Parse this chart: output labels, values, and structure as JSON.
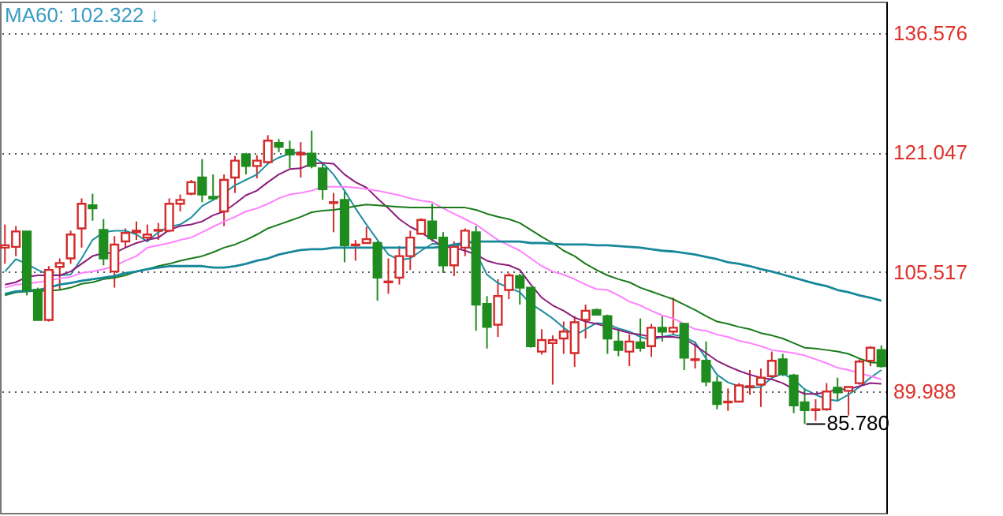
{
  "chart_data": {
    "type": "candlestick",
    "title": "MA60: 102.322 ↓",
    "categories": [
      null,
      null,
      null,
      null,
      null,
      null,
      null,
      null,
      null,
      null,
      null,
      null,
      null,
      null,
      null,
      null,
      null,
      null,
      null,
      null,
      null,
      null,
      null,
      null,
      null,
      null,
      null,
      null,
      null,
      null,
      null,
      null,
      null,
      null,
      null,
      null,
      null,
      null,
      null,
      null,
      null,
      null,
      null,
      null,
      null,
      null,
      null,
      null,
      null,
      null,
      null,
      null,
      null,
      null,
      null,
      null,
      null,
      null,
      null,
      null,
      null,
      null,
      null,
      null,
      null,
      null,
      null,
      null,
      null,
      null,
      null,
      null,
      null,
      null,
      null,
      null,
      null,
      null,
      null,
      null,
      null
    ],
    "ohlc": [
      [
        108.7,
        111.7,
        106.6,
        109.0
      ],
      [
        108.8,
        111.5,
        107.6,
        110.8
      ],
      [
        110.8,
        110.8,
        102.5,
        103.2
      ],
      [
        103.2,
        103.5,
        99.3,
        99.3
      ],
      [
        99.3,
        106.3,
        99.1,
        105.8
      ],
      [
        106.2,
        107.3,
        103.2,
        106.7
      ],
      [
        107.3,
        110.9,
        106.6,
        110.4
      ],
      [
        111.2,
        115.1,
        108.7,
        114.4
      ],
      [
        114.2,
        115.7,
        112.2,
        113.8
      ],
      [
        111.0,
        112.4,
        106.4,
        107.3
      ],
      [
        105.6,
        110.2,
        103.5,
        109.1
      ],
      [
        109.5,
        111.2,
        108.7,
        110.6
      ],
      [
        110.7,
        112.1,
        109.7,
        110.9
      ],
      [
        110.0,
        111.7,
        109.5,
        110.4
      ],
      [
        110.9,
        111.9,
        109.7,
        111.0
      ],
      [
        110.9,
        115.1,
        110.7,
        114.4
      ],
      [
        114.4,
        115.6,
        113.4,
        114.9
      ],
      [
        115.7,
        117.5,
        115.5,
        117.2
      ],
      [
        117.8,
        120.2,
        114.6,
        115.6
      ],
      [
        115.3,
        118.2,
        114.8,
        115.1
      ],
      [
        113.4,
        118.2,
        111.5,
        117.5
      ],
      [
        117.8,
        120.6,
        115.8,
        120.0
      ],
      [
        120.8,
        121.0,
        118.2,
        119.3
      ],
      [
        119.3,
        120.7,
        117.7,
        120.0
      ],
      [
        119.8,
        123.3,
        119.6,
        122.6
      ],
      [
        122.3,
        122.8,
        121.1,
        121.8
      ],
      [
        121.4,
        122.6,
        119.0,
        120.8
      ],
      [
        120.8,
        122.4,
        117.8,
        121.0
      ],
      [
        120.9,
        123.9,
        119.0,
        119.3
      ],
      [
        119.0,
        119.6,
        114.9,
        116.3
      ],
      [
        114.5,
        115.8,
        110.7,
        114.6
      ],
      [
        114.9,
        116.0,
        106.8,
        109.0
      ],
      [
        109.0,
        109.7,
        107.0,
        109.1
      ],
      [
        109.3,
        111.4,
        109.2,
        109.8
      ],
      [
        109.3,
        109.5,
        101.8,
        104.8
      ],
      [
        104.2,
        107.3,
        102.7,
        104.3
      ],
      [
        104.8,
        108.9,
        103.9,
        107.6
      ],
      [
        107.6,
        110.9,
        105.8,
        110.0
      ],
      [
        110.5,
        112.5,
        110.4,
        112.3
      ],
      [
        112.1,
        114.4,
        109.5,
        109.9
      ],
      [
        110.0,
        110.7,
        105.4,
        106.4
      ],
      [
        106.4,
        109.5,
        105.0,
        108.8
      ],
      [
        108.7,
        111.2,
        107.6,
        110.9
      ],
      [
        110.7,
        111.5,
        97.9,
        101.3
      ],
      [
        101.4,
        102.4,
        95.6,
        98.4
      ],
      [
        98.7,
        104.6,
        97.1,
        102.4
      ],
      [
        103.2,
        105.4,
        102.0,
        105.1
      ],
      [
        105.0,
        105.3,
        101.3,
        103.5
      ],
      [
        103.5,
        103.5,
        95.7,
        95.9
      ],
      [
        95.2,
        98.1,
        94.8,
        96.7
      ],
      [
        96.3,
        97.3,
        90.9,
        96.7
      ],
      [
        96.9,
        99.1,
        94.9,
        97.8
      ],
      [
        95.0,
        99.8,
        93.2,
        99.0
      ],
      [
        99.3,
        101.3,
        96.9,
        100.5
      ],
      [
        100.6,
        100.8,
        99.9,
        100.0
      ],
      [
        99.8,
        100.0,
        94.9,
        96.9
      ],
      [
        96.5,
        98.1,
        94.6,
        95.4
      ],
      [
        95.2,
        97.4,
        93.3,
        96.5
      ],
      [
        96.4,
        99.5,
        95.2,
        95.7
      ],
      [
        95.9,
        98.8,
        94.5,
        98.3
      ],
      [
        98.3,
        99.8,
        96.5,
        97.8
      ],
      [
        97.8,
        102.2,
        97.4,
        98.3
      ],
      [
        98.8,
        98.9,
        92.8,
        94.4
      ],
      [
        94.1,
        96.5,
        93.0,
        94.2
      ],
      [
        94.0,
        96.5,
        90.7,
        91.3
      ],
      [
        91.2,
        92.0,
        87.7,
        88.4
      ],
      [
        88.6,
        90.4,
        87.5,
        88.7
      ],
      [
        88.7,
        91.1,
        88.6,
        90.8
      ],
      [
        90.6,
        92.8,
        89.6,
        90.7
      ],
      [
        90.9,
        93.0,
        88.0,
        91.8
      ],
      [
        92.0,
        95.2,
        91.6,
        94.0
      ],
      [
        94.2,
        94.9,
        92.0,
        92.3
      ],
      [
        92.1,
        92.3,
        87.2,
        88.2
      ],
      [
        88.6,
        90.4,
        85.78,
        87.6
      ],
      [
        87.6,
        89.0,
        86.2,
        87.7
      ],
      [
        87.7,
        91.1,
        87.5,
        90.0
      ],
      [
        90.5,
        91.8,
        88.9,
        89.9
      ],
      [
        90.1,
        90.7,
        86.9,
        90.6
      ],
      [
        91.1,
        94.2,
        90.9,
        93.9
      ],
      [
        94.0,
        95.9,
        93.3,
        95.7
      ],
      [
        95.4,
        96.0,
        93.1,
        93.3
      ]
    ],
    "colors": [
      "#d42a2a",
      "#d42a2a",
      "#1e8c1e",
      "#1e8c1e",
      "#d42a2a",
      "#d42a2a",
      "#d42a2a",
      "#d42a2a",
      "#1e8c1e",
      "#1e8c1e",
      "#d42a2a",
      "#d42a2a",
      "#d42a2a",
      "#d42a2a",
      "#d42a2a",
      "#d42a2a",
      "#d42a2a",
      "#d42a2a",
      "#1e8c1e",
      "#1e8c1e",
      "#d42a2a",
      "#d42a2a",
      "#1e8c1e",
      "#d42a2a",
      "#d42a2a",
      "#1e8c1e",
      "#1e8c1e",
      "#d42a2a",
      "#1e8c1e",
      "#1e8c1e",
      "#d42a2a",
      "#1e8c1e",
      "#d42a2a",
      "#d42a2a",
      "#1e8c1e",
      "#d42a2a",
      "#d42a2a",
      "#d42a2a",
      "#d42a2a",
      "#1e8c1e",
      "#1e8c1e",
      "#d42a2a",
      "#d42a2a",
      "#1e8c1e",
      "#1e8c1e",
      "#d42a2a",
      "#d42a2a",
      "#1e8c1e",
      "#1e8c1e",
      "#d42a2a",
      "#d42a2a",
      "#d42a2a",
      "#d42a2a",
      "#d42a2a",
      "#1e8c1e",
      "#1e8c1e",
      "#1e8c1e",
      "#d42a2a",
      "#1e8c1e",
      "#d42a2a",
      "#1e8c1e",
      "#d42a2a",
      "#1e8c1e",
      "#d42a2a",
      "#1e8c1e",
      "#1e8c1e",
      "#d42a2a",
      "#d42a2a",
      "#d42a2a",
      "#d42a2a",
      "#d42a2a",
      "#1e8c1e",
      "#1e8c1e",
      "#1e8c1e",
      "#d42a2a",
      "#d42a2a",
      "#1e8c1e",
      "#d42a2a",
      "#d42a2a",
      "#d42a2a",
      "#1e8c1e"
    ],
    "series": [
      {
        "type": "line",
        "color": "#1f8f9f",
        "values": [
          105.6,
          107.2,
          106.6,
          105.8,
          105.2,
          105.1,
          105.2,
          107.3,
          109.7,
          110.7,
          110.9,
          110.9,
          110.4,
          109.5,
          110.7,
          111.4,
          111.7,
          112.6,
          114.1,
          114.9,
          115.8,
          116.8,
          117.5,
          118.2,
          119.6,
          120.4,
          120.9,
          121.1,
          120.6,
          119.7,
          118.2,
          116.1,
          113.8,
          111.7,
          109.7,
          107.8,
          107.1,
          107.3,
          108.3,
          109.2,
          109.1,
          108.8,
          109.3,
          108.0,
          105.2,
          104.1,
          103.5,
          102.9,
          101.4,
          100.5,
          99.5,
          98.3,
          97.3,
          98.1,
          98.9,
          98.8,
          98.2,
          97.8,
          97.1,
          96.7,
          97.1,
          97.4,
          97.1,
          96.4,
          94.3,
          92.2,
          91.2,
          90.7,
          90.5,
          90.6,
          91.8,
          92.3,
          91.6,
          90.3,
          89.6,
          89.0,
          88.8,
          89.6,
          90.6,
          91.8,
          92.8
        ]
      },
      {
        "type": "line",
        "color": "#8c1c7c",
        "values": [
          103.9,
          104.2,
          104.9,
          105.1,
          105.1,
          105.1,
          105.6,
          106.6,
          107.6,
          108.0,
          108.0,
          108.7,
          109.3,
          109.7,
          110.0,
          111.0,
          111.5,
          111.7,
          112.1,
          112.9,
          113.4,
          114.4,
          115.5,
          116.1,
          117.2,
          118.2,
          118.9,
          119.0,
          119.6,
          119.7,
          119.6,
          118.2,
          117.2,
          116.5,
          115.1,
          113.8,
          112.4,
          111.4,
          110.7,
          109.7,
          108.8,
          108.7,
          108.3,
          107.8,
          107.0,
          106.6,
          106.4,
          105.8,
          103.9,
          102.2,
          101.2,
          100.5,
          99.6,
          99.1,
          98.8,
          98.4,
          98.0,
          97.6,
          97.4,
          97.1,
          97.1,
          97.1,
          96.9,
          96.0,
          95.0,
          94.0,
          93.3,
          92.7,
          92.2,
          91.8,
          91.6,
          91.1,
          90.3,
          89.7,
          89.7,
          89.9,
          90.3,
          90.3,
          90.7,
          91.1,
          91.0
        ]
      },
      {
        "type": "line",
        "color": "#ff80ff",
        "values": [
          103.5,
          103.9,
          104.0,
          104.2,
          104.4,
          104.7,
          104.9,
          105.4,
          105.6,
          105.9,
          106.3,
          107.0,
          107.6,
          108.7,
          109.0,
          109.3,
          109.7,
          110.0,
          110.7,
          111.4,
          112.1,
          112.7,
          113.4,
          113.8,
          114.4,
          115.1,
          115.6,
          115.8,
          116.1,
          116.6,
          116.6,
          116.6,
          116.5,
          116.3,
          116.1,
          115.8,
          115.5,
          115.1,
          114.8,
          114.6,
          113.8,
          113.1,
          112.4,
          111.7,
          110.7,
          109.7,
          109.0,
          108.3,
          107.3,
          106.3,
          105.6,
          105.2,
          104.6,
          103.9,
          103.3,
          103.2,
          102.5,
          101.7,
          101.2,
          100.5,
          99.9,
          99.5,
          98.8,
          98.1,
          97.9,
          97.4,
          97.1,
          96.6,
          96.3,
          95.9,
          95.4,
          95.2,
          95.0,
          94.7,
          94.2,
          93.7,
          93.1,
          92.8,
          92.4,
          92.0,
          91.6
        ]
      },
      {
        "type": "line",
        "color": "#1a7a1a",
        "values": [
          102.5,
          102.9,
          103.0,
          103.1,
          103.1,
          103.2,
          103.5,
          104.0,
          104.2,
          104.6,
          104.8,
          105.1,
          105.6,
          105.9,
          106.3,
          106.6,
          107.0,
          107.3,
          107.6,
          108.1,
          108.7,
          109.1,
          109.7,
          110.4,
          111.2,
          111.7,
          112.2,
          112.7,
          113.3,
          113.5,
          113.6,
          113.8,
          114.1,
          114.3,
          114.2,
          114.1,
          114.0,
          113.9,
          113.9,
          113.9,
          113.9,
          113.9,
          113.9,
          113.6,
          113.1,
          112.7,
          112.4,
          111.9,
          111.0,
          110.1,
          109.3,
          108.3,
          107.6,
          106.6,
          105.8,
          105.1,
          104.6,
          104.2,
          103.5,
          103.0,
          102.5,
          102.0,
          101.3,
          100.6,
          99.8,
          99.1,
          98.8,
          98.4,
          98.1,
          97.6,
          97.3,
          96.9,
          96.3,
          95.7,
          95.6,
          95.4,
          95.2,
          94.9,
          94.3,
          93.8,
          93.7
        ]
      },
      {
        "type": "line",
        "color": "#17879a",
        "values": [
          102.7,
          103.0,
          103.1,
          103.2,
          103.5,
          103.9,
          104.1,
          104.4,
          104.6,
          104.8,
          105.0,
          105.4,
          105.6,
          105.9,
          106.1,
          106.3,
          106.3,
          106.3,
          106.3,
          106.1,
          106.1,
          106.3,
          106.6,
          107.0,
          107.3,
          107.8,
          108.1,
          108.4,
          108.5,
          108.5,
          108.7,
          108.7,
          108.7,
          108.7,
          108.7,
          108.7,
          108.7,
          108.7,
          108.7,
          108.7,
          108.8,
          109.1,
          109.3,
          109.5,
          109.5,
          109.5,
          109.5,
          109.5,
          109.3,
          109.3,
          109.2,
          109.1,
          109.1,
          109.1,
          109.0,
          109.0,
          108.9,
          108.8,
          108.7,
          108.5,
          108.3,
          108.2,
          108.0,
          107.8,
          107.5,
          107.2,
          106.8,
          106.6,
          106.3,
          105.9,
          105.6,
          105.2,
          104.8,
          104.4,
          104.0,
          103.7,
          103.2,
          102.9,
          102.5,
          102.2,
          101.8
        ]
      }
    ],
    "annotations": [
      "85.780"
    ],
    "ylim": [
      74.25,
      140.66
    ],
    "yticks": [
      89.988,
      105.517,
      121.047,
      136.576
    ],
    "grid": "y",
    "tick_labels": "y"
  }
}
